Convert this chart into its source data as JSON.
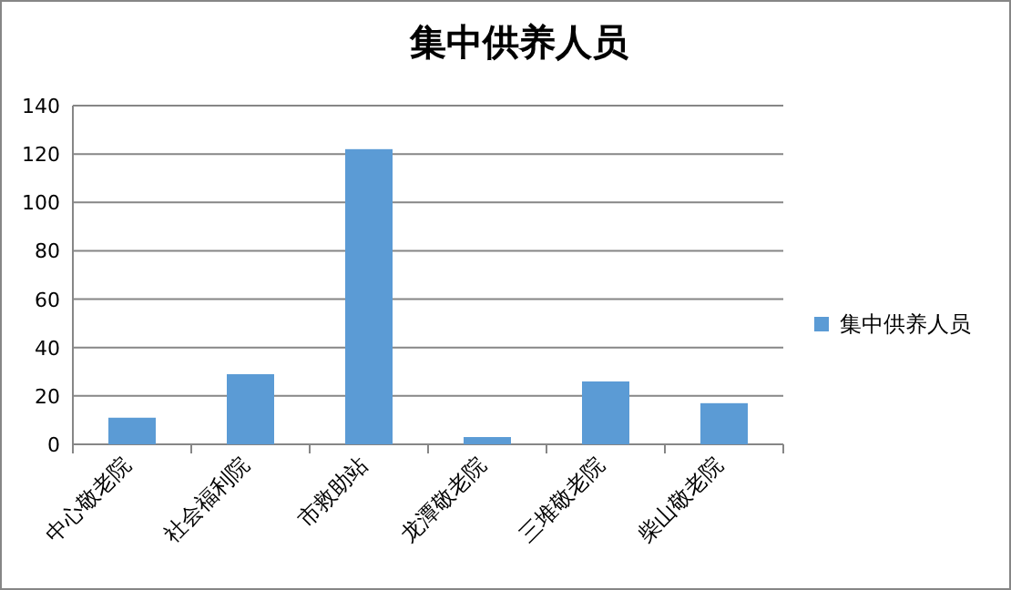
{
  "chart_data": {
    "type": "bar",
    "title": "集中供养人员",
    "categories": [
      "中心敬老院",
      "社会福利院",
      "市救助站",
      "龙潭敬老院",
      "三堆敬老院",
      "柴山敬老院"
    ],
    "series": [
      {
        "name": "集中供养人员",
        "color": "#5b9bd5",
        "values": [
          11,
          29,
          122,
          3,
          26,
          17
        ]
      }
    ],
    "ylim": [
      0,
      140
    ],
    "yticks": [
      0,
      20,
      40,
      60,
      80,
      100,
      120,
      140
    ],
    "grid": "y",
    "legend": "right"
  }
}
